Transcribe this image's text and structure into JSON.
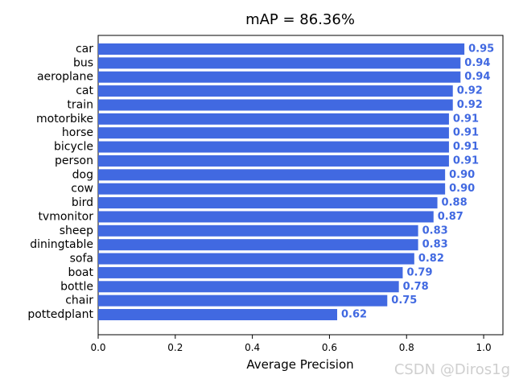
{
  "chart_data": {
    "type": "bar",
    "orientation": "horizontal",
    "title": "mAP = 86.36%",
    "xlabel": "Average Precision",
    "ylabel": "",
    "xlim": [
      0,
      1.05
    ],
    "xticks": [
      0.0,
      0.2,
      0.4,
      0.6,
      0.8,
      1.0
    ],
    "xtick_labels": [
      "0.0",
      "0.2",
      "0.4",
      "0.6",
      "0.8",
      "1.0"
    ],
    "categories": [
      "car",
      "bus",
      "aeroplane",
      "cat",
      "train",
      "motorbike",
      "horse",
      "bicycle",
      "person",
      "dog",
      "cow",
      "bird",
      "tvmonitor",
      "sheep",
      "diningtable",
      "sofa",
      "boat",
      "bottle",
      "chair",
      "pottedplant"
    ],
    "values": [
      0.95,
      0.94,
      0.94,
      0.92,
      0.92,
      0.91,
      0.91,
      0.91,
      0.91,
      0.9,
      0.9,
      0.88,
      0.87,
      0.83,
      0.83,
      0.82,
      0.79,
      0.78,
      0.75,
      0.62
    ],
    "value_labels": [
      "0.95",
      "0.94",
      "0.94",
      "0.92",
      "0.92",
      "0.91",
      "0.91",
      "0.91",
      "0.91",
      "0.90",
      "0.90",
      "0.88",
      "0.87",
      "0.83",
      "0.83",
      "0.82",
      "0.79",
      "0.78",
      "0.75",
      "0.62"
    ],
    "bar_color": "#4169e1",
    "label_color": "#4169e1",
    "grid": false,
    "legend": "none"
  },
  "watermark": "CSDN @Diros1g"
}
